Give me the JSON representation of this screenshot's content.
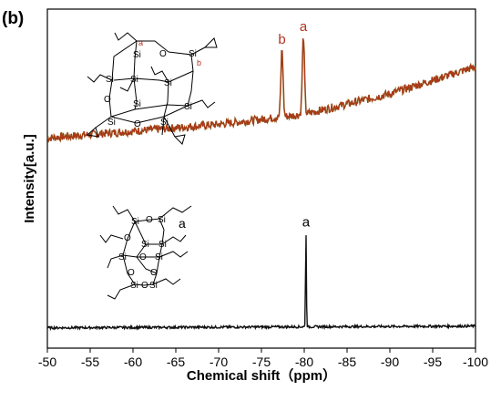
{
  "panel_label": "(b)",
  "chart_data": {
    "type": "line",
    "title": "",
    "xlabel": "Chemical shift（ppm）",
    "ylabel": "Intensity[a.u.]",
    "xlim": [
      -50,
      -100
    ],
    "x_ticks": [
      -50,
      -55,
      -60,
      -65,
      -70,
      -75,
      -80,
      -85,
      -90,
      -95,
      -100
    ],
    "x_tick_labels": [
      "-50",
      "-55",
      "-60",
      "-65",
      "-70",
      "-75",
      "-80",
      "-85",
      "-90",
      "-95",
      "-100"
    ],
    "y_ticks_shown": false,
    "grid": false,
    "series": [
      {
        "color": "#b2331c",
        "noise_color": "#8b5a14",
        "baseline": [
          [
            -50,
            0.62
          ],
          [
            -60,
            0.64
          ],
          [
            -70,
            0.66
          ],
          [
            -75,
            0.675
          ],
          [
            -80,
            0.69
          ],
          [
            -90,
            0.75
          ],
          [
            -100,
            0.83
          ]
        ],
        "peaks": [
          {
            "x": -77.4,
            "label": "b",
            "height": 0.2
          },
          {
            "x": -79.9,
            "label": "a",
            "height": 0.23
          }
        ]
      },
      {
        "color": "#111111",
        "baseline": [
          [
            -50,
            0.06
          ],
          [
            -100,
            0.065
          ]
        ],
        "peaks": [
          {
            "x": -80.2,
            "label": "a",
            "height": 0.28
          }
        ]
      }
    ],
    "peak_label_color_top": "#b2331c",
    "peak_label_color_bottom": "#000000"
  },
  "structure_top": {
    "si_label": "Si",
    "o_label": "O",
    "site_a": "a",
    "site_b": "b",
    "site_color": "#b2331c"
  },
  "structure_bottom": {
    "si_label": "Si",
    "o_label": "O",
    "site_a": "a"
  }
}
